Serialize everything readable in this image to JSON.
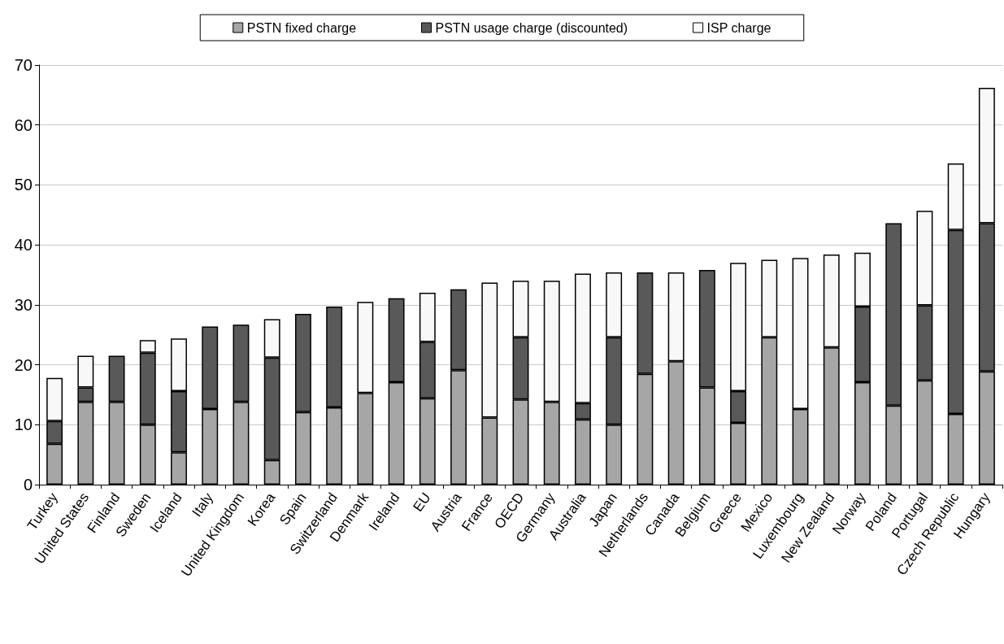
{
  "chart_data": {
    "type": "bar",
    "stacked": true,
    "categories": [
      "Turkey",
      "United States",
      "Finland",
      "Sweden",
      "Iceland",
      "Italy",
      "United Kingdom",
      "Korea",
      "Spain",
      "Switzerland",
      "Denmark",
      "Ireland",
      "EU",
      "Austria",
      "France",
      "OECD",
      "Germany",
      "Australia",
      "Japan",
      "Netherlands",
      "Canada",
      "Belgium",
      "Greece",
      "Mexico",
      "Luxembourg",
      "New Zealand",
      "Norway",
      "Poland",
      "Portugal",
      "Czech Republic",
      "Hungary"
    ],
    "series": [
      {
        "name": "PSTN fixed charge",
        "color": "#a6a6a6",
        "values": [
          6.8,
          13.8,
          13.8,
          10,
          5.4,
          12.6,
          13.8,
          4.1,
          12.1,
          12.9,
          15.3,
          17.1,
          14.4,
          19.1,
          11.2,
          14.2,
          13.8,
          10.9,
          10,
          18.5,
          20.6,
          16.2,
          10.3,
          24.6,
          12.6,
          22.9,
          17.1,
          13.2,
          17.4,
          11.8,
          18.9
        ]
      },
      {
        "name": "PSTN usage charge (discounted)",
        "color": "#595959",
        "values": [
          3.8,
          2.4,
          7.7,
          12,
          10.2,
          13.8,
          12.9,
          17.1,
          16.4,
          16.8,
          null,
          14,
          9.4,
          13.5,
          null,
          10.4,
          null,
          2.7,
          14.6,
          16.9,
          null,
          19.6,
          5.3,
          null,
          null,
          null,
          12.6,
          30.4,
          12.5,
          30.7,
          24.7
        ]
      },
      {
        "name": "ISP charge",
        "color": "#f8f8f8",
        "values": [
          7.2,
          5.3,
          null,
          2.1,
          8.8,
          null,
          null,
          6.4,
          null,
          null,
          15.2,
          null,
          8.2,
          null,
          22.5,
          9.4,
          20.2,
          21.6,
          10.8,
          null,
          14.8,
          null,
          21.4,
          12.9,
          25.2,
          15.5,
          9,
          null,
          15.8,
          11.1,
          22.6
        ]
      }
    ],
    "ylim": [
      0,
      70
    ],
    "yticks": [
      0,
      10,
      20,
      30,
      40,
      50,
      60,
      70
    ],
    "grid": "y",
    "legend": "top"
  }
}
